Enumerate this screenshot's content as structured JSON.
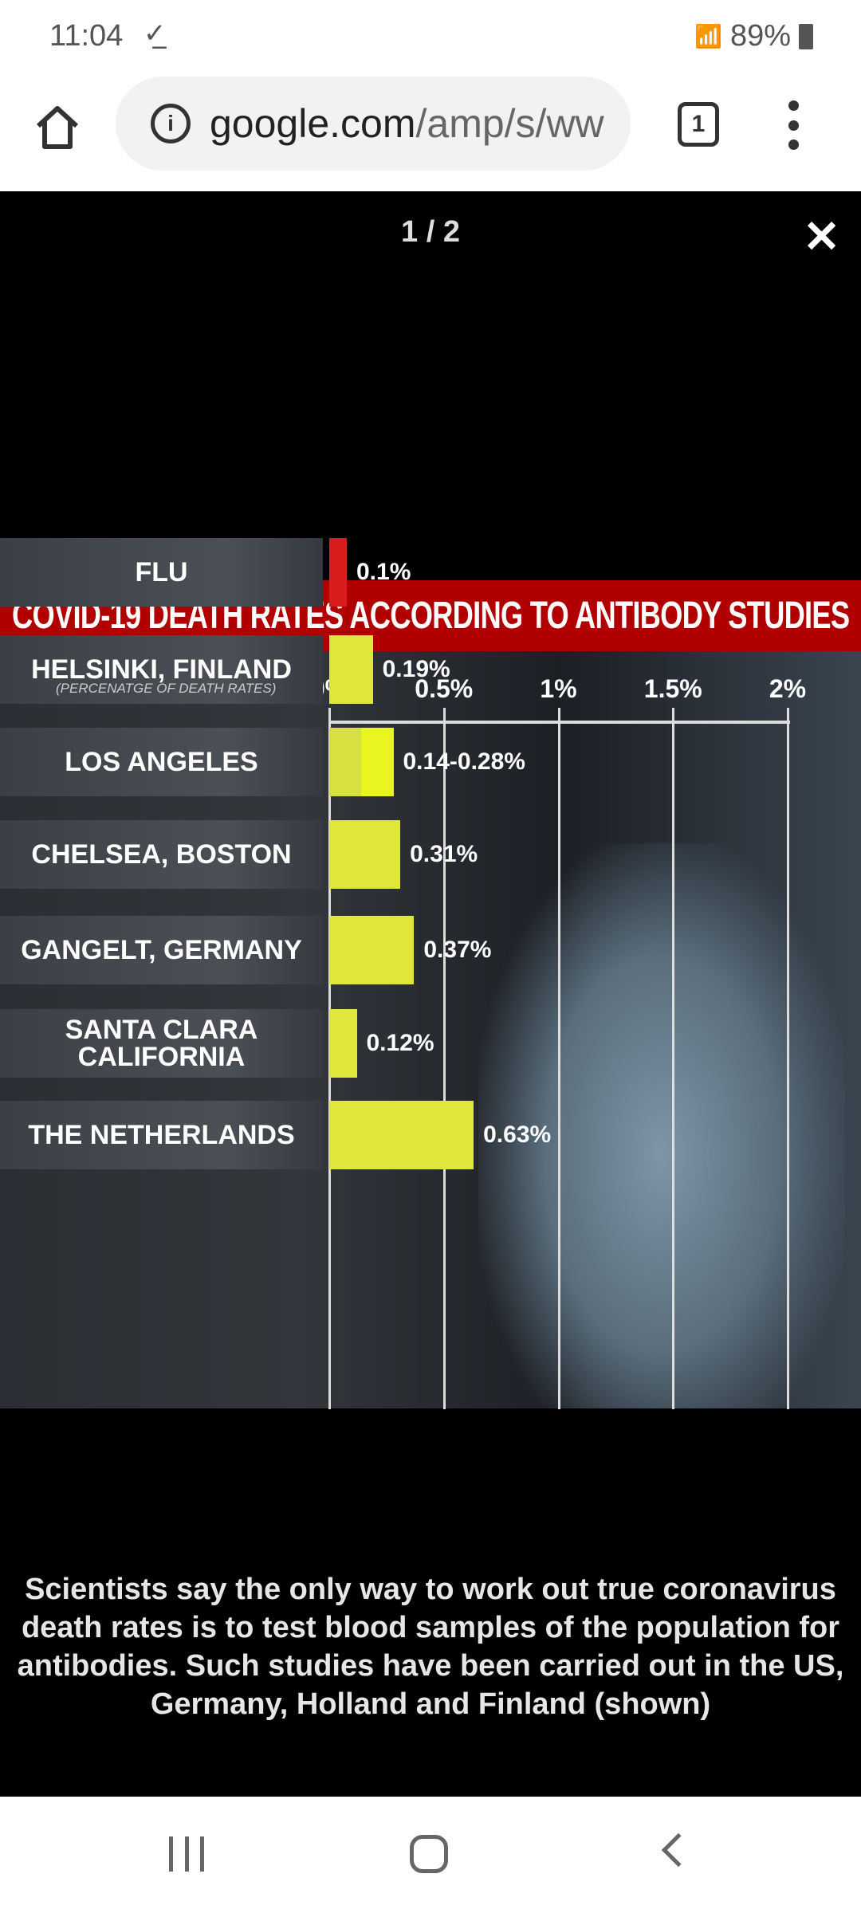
{
  "status": {
    "time": "11:04",
    "battery": "89%"
  },
  "browser": {
    "url_host": "google.com",
    "url_path": "/amp/s/ww",
    "tab_count": "1"
  },
  "viewer": {
    "counter": "1 / 2",
    "caption": "Scientists say the only way to work out true coronavirus death rates is to test blood samples of the population for antibodies. Such studies have been carried out in the US, Germany, Holland and Finland (shown)"
  },
  "chart_data": {
    "type": "bar",
    "title": "COVID-19 DEATH RATES ACCORDING TO ANTIBODY STUDIES",
    "xlabel": "(PERCENATGE OF DEATH RATES)",
    "xlim": [
      0,
      2
    ],
    "ticks": [
      "0%",
      "0.5%",
      "1%",
      "1.5%",
      "2%"
    ],
    "categories": [
      "FLU",
      "HELSINKI, FINLAND",
      "LOS ANGELES",
      "CHELSEA, BOSTON",
      "GANGELT, GERMANY",
      "SANTA CLARA CALIFORNIA",
      "THE NETHERLANDS"
    ],
    "values": [
      0.1,
      0.19,
      0.28,
      0.31,
      0.37,
      0.12,
      0.63
    ],
    "range_low": [
      null,
      null,
      0.14,
      null,
      null,
      null,
      null
    ],
    "labels": [
      "0.1%",
      "0.19%",
      "0.14-0.28%",
      "0.31%",
      "0.37%",
      "0.12%",
      "0.63%"
    ],
    "colors": [
      "#d81b1b",
      "#dfe83a",
      "#e8f520",
      "#dfe83a",
      "#dfe83a",
      "#dfe83a",
      "#dfe83a"
    ]
  }
}
